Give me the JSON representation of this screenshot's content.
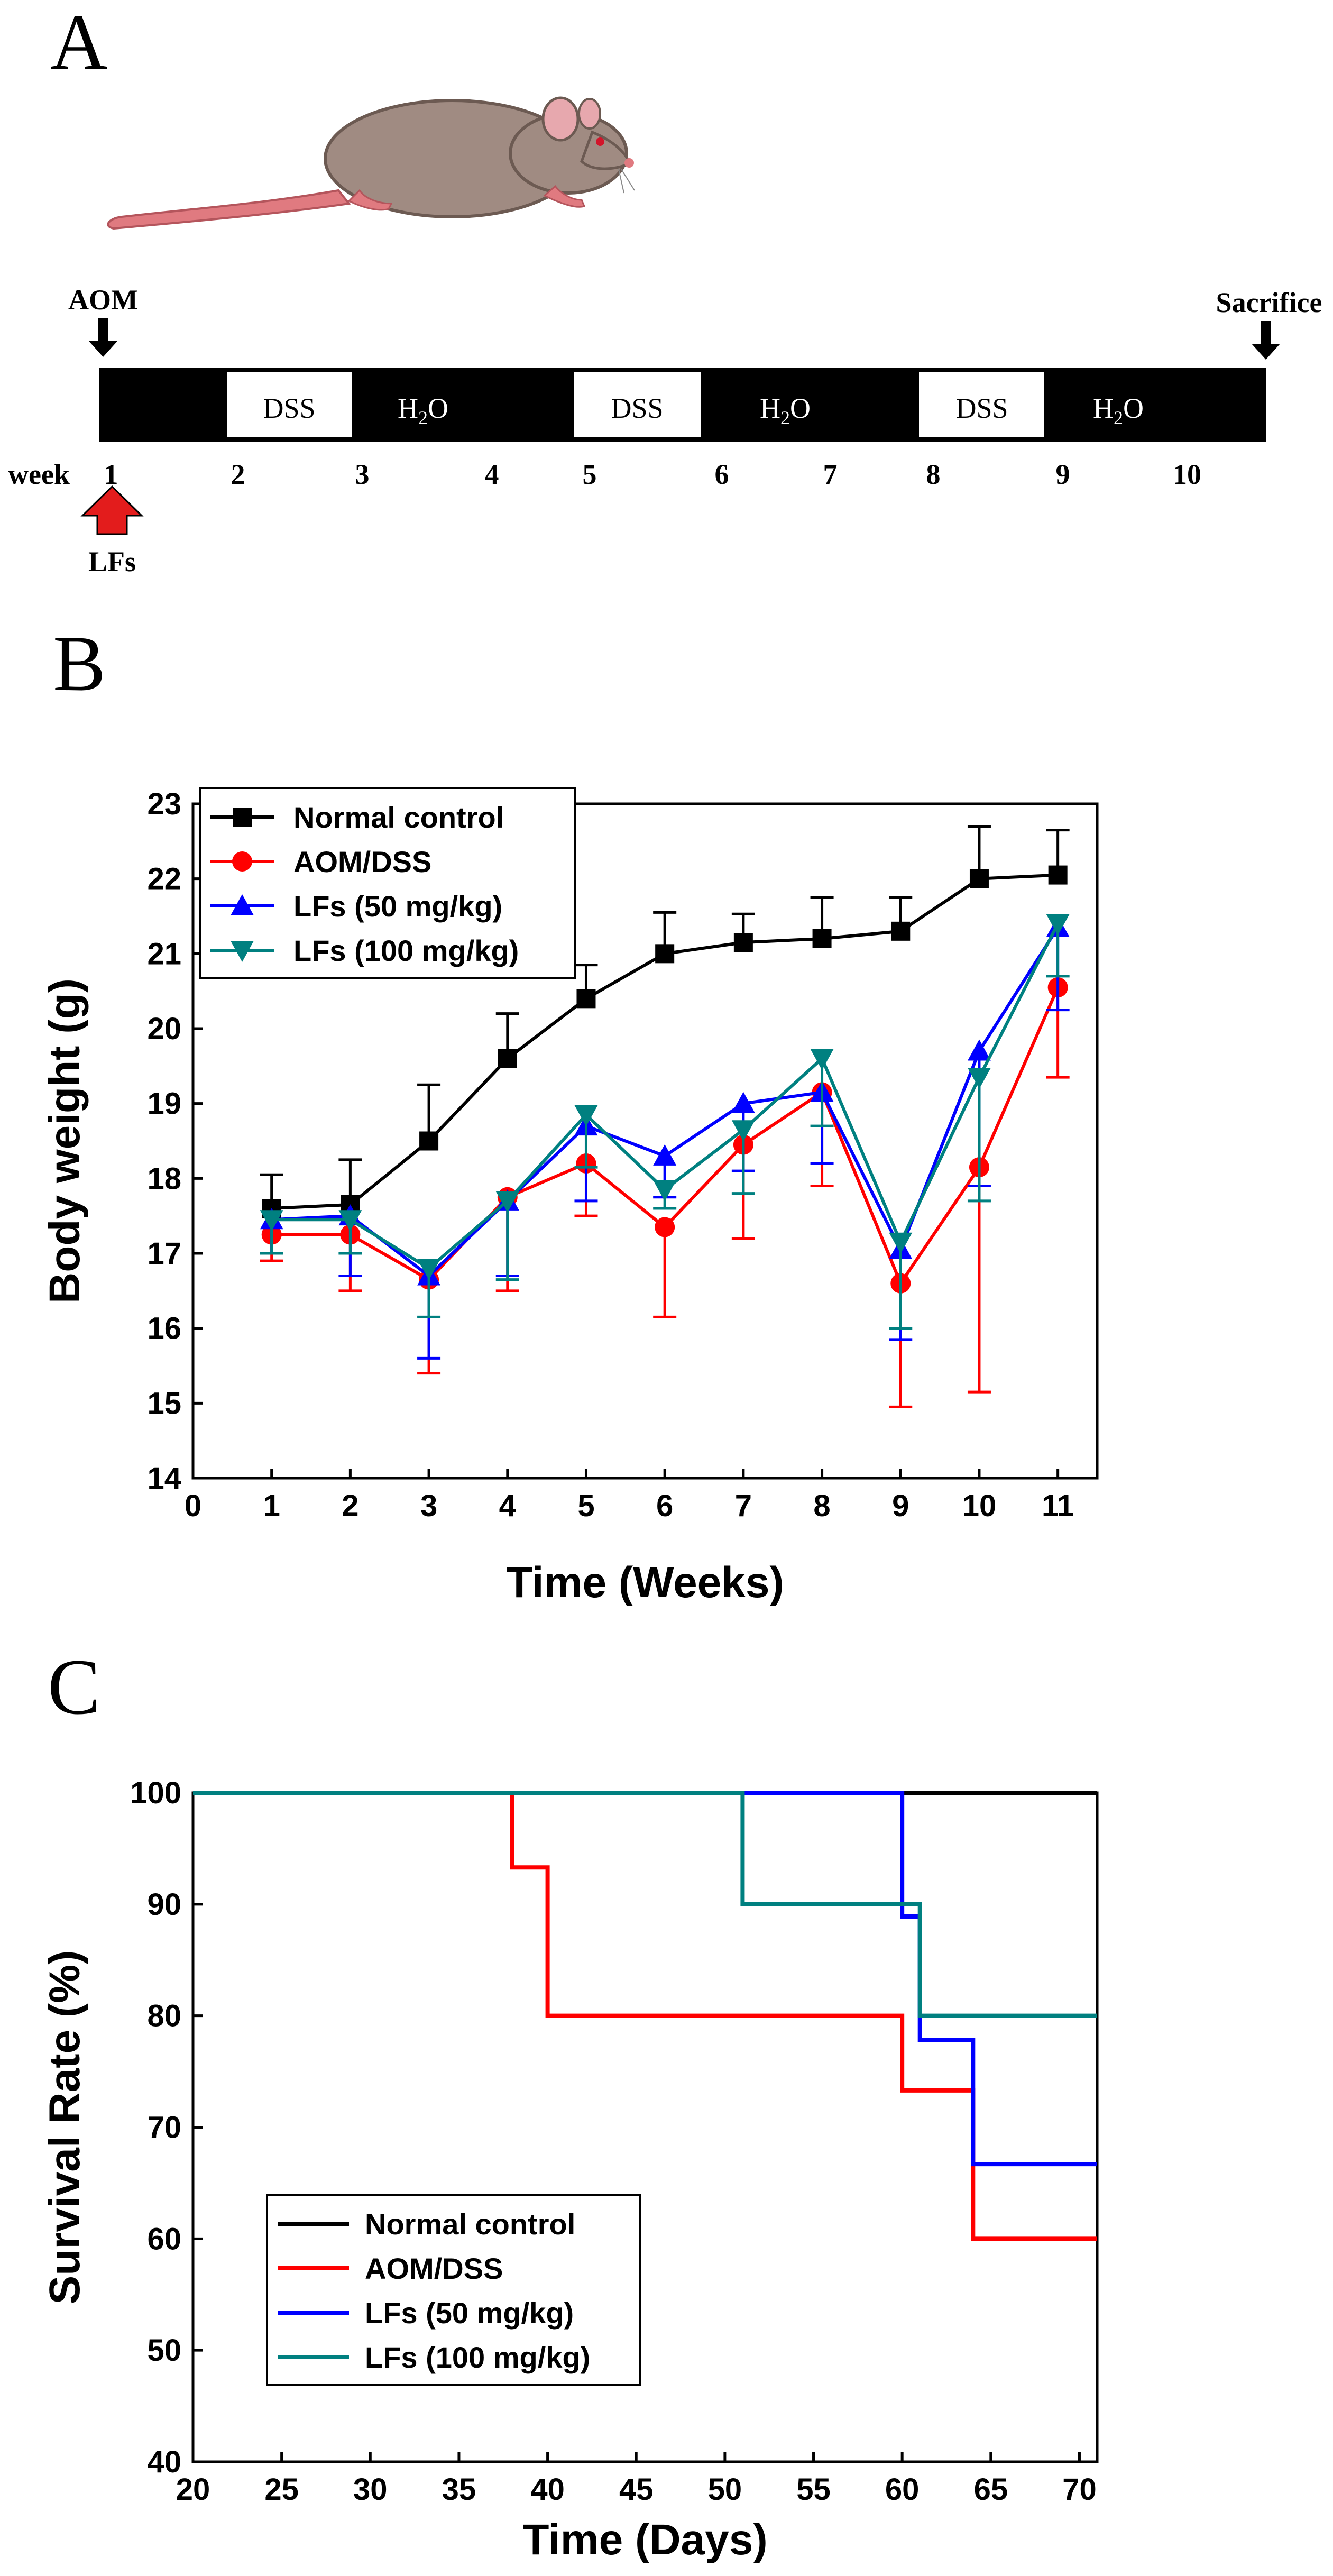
{
  "panels": {
    "a": "A",
    "b": "B",
    "c": "C"
  },
  "timeline": {
    "aom": "AOM",
    "sacrifice": "Sacrifice",
    "week_label": "week",
    "lfs": "LFs",
    "segments": [
      {
        "label": "",
        "fill": "black"
      },
      {
        "label": "DSS",
        "fill": "white"
      },
      {
        "label": "H2O",
        "fill": "black"
      },
      {
        "label": "DSS",
        "fill": "white"
      },
      {
        "label": "H2O",
        "fill": "black"
      },
      {
        "label": "DSS",
        "fill": "white"
      },
      {
        "label": "H2O",
        "fill": "black"
      }
    ],
    "h2o_main": "H",
    "h2o_sub": "2",
    "h2o_tail": "O",
    "weeks": [
      "1",
      "2",
      "3",
      "4",
      "5",
      "6",
      "7",
      "8",
      "9",
      "10"
    ],
    "arrow_color": "#e31c1c"
  },
  "chart_data": [
    {
      "type": "line",
      "xlabel": "Time (Weeks)",
      "ylabel": "Body weight (g)",
      "xlim": [
        0,
        11.5
      ],
      "ylim": [
        14,
        23
      ],
      "xticks": [
        "0",
        "1",
        "2",
        "3",
        "4",
        "5",
        "6",
        "7",
        "8",
        "9",
        "10",
        "11"
      ],
      "yticks": [
        "14",
        "15",
        "16",
        "17",
        "18",
        "19",
        "20",
        "21",
        "22",
        "23"
      ],
      "legend_position": "top-left",
      "x": [
        1,
        2,
        3,
        4,
        5,
        6,
        7,
        8,
        9,
        10,
        11
      ],
      "series": [
        {
          "name": "Normal control",
          "color": "#000000",
          "marker": "square",
          "values": [
            17.6,
            17.65,
            18.5,
            19.6,
            20.4,
            21.0,
            21.15,
            21.2,
            21.3,
            22.0,
            22.05
          ],
          "err": [
            0.45,
            0.6,
            0.75,
            0.6,
            0.45,
            0.55,
            0.38,
            0.55,
            0.45,
            0.7,
            0.6
          ],
          "err_dir": "up"
        },
        {
          "name": "AOM/DSS",
          "color": "#ff0000",
          "marker": "circle",
          "values": [
            17.25,
            17.25,
            16.65,
            17.75,
            18.2,
            17.35,
            18.45,
            19.15,
            16.6,
            18.15,
            20.55
          ],
          "err": [
            0.35,
            0.75,
            1.25,
            1.25,
            0.7,
            1.2,
            1.25,
            1.25,
            1.65,
            3.0,
            1.2
          ],
          "err_dir": "down"
        },
        {
          "name": "LFs (50 mg/kg)",
          "color": "#0000ff",
          "marker": "triangle-up",
          "values": [
            17.45,
            17.5,
            16.7,
            17.7,
            18.7,
            18.3,
            19.0,
            19.15,
            17.05,
            19.7,
            21.35
          ],
          "err": [
            0.45,
            0.8,
            1.1,
            1.0,
            1.0,
            0.55,
            0.9,
            0.95,
            1.2,
            1.8,
            1.1
          ],
          "err_dir": "down"
        },
        {
          "name": "LFs (100 mg/kg)",
          "color": "#008080",
          "marker": "triangle-down",
          "values": [
            17.45,
            17.45,
            16.8,
            17.7,
            18.85,
            17.85,
            18.65,
            19.6,
            17.15,
            19.35,
            21.4
          ],
          "err": [
            0.45,
            0.45,
            0.65,
            1.05,
            0.7,
            0.25,
            0.85,
            0.9,
            1.15,
            1.65,
            0.7
          ],
          "err_dir": "down"
        }
      ]
    },
    {
      "type": "line",
      "xlabel": "Time (Days)",
      "ylabel": "Survival Rate (%)",
      "xlim": [
        20,
        71
      ],
      "ylim": [
        40,
        100
      ],
      "xticks": [
        "20",
        "25",
        "30",
        "35",
        "40",
        "45",
        "50",
        "55",
        "60",
        "65",
        "70"
      ],
      "yticks": [
        "40",
        "50",
        "60",
        "70",
        "80",
        "90",
        "100"
      ],
      "legend_position": "bottom-left",
      "series": [
        {
          "name": "Normal control",
          "color": "#000000",
          "x": [
            20,
            71
          ],
          "values": [
            100,
            100
          ]
        },
        {
          "name": "AOM/DSS",
          "color": "#ff0000",
          "x": [
            20,
            38,
            38,
            40,
            40,
            60,
            60,
            64,
            64,
            71
          ],
          "values": [
            100,
            100,
            93.3,
            93.3,
            80,
            80,
            73.3,
            73.3,
            60,
            60
          ]
        },
        {
          "name": "LFs (50 mg/kg)",
          "color": "#0000ff",
          "x": [
            20,
            60,
            60,
            61,
            61,
            64,
            64,
            71
          ],
          "values": [
            100,
            100,
            88.9,
            88.9,
            77.8,
            77.8,
            66.7,
            66.7
          ]
        },
        {
          "name": "LFs (100 mg/kg)",
          "color": "#008080",
          "x": [
            20,
            51,
            51,
            61,
            61,
            71
          ],
          "values": [
            100,
            100,
            90,
            90,
            80,
            80
          ]
        }
      ]
    }
  ]
}
